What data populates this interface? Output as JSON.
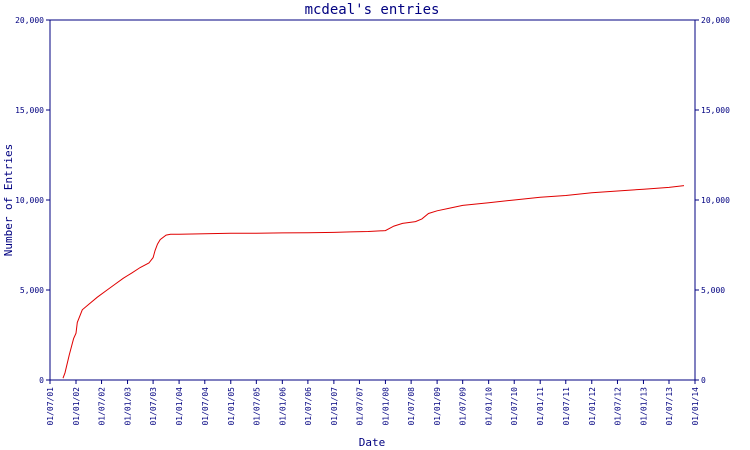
{
  "colors": {
    "axis": "#000080",
    "series": "#e00000",
    "background": "#ffffff"
  },
  "chart_data": {
    "type": "line",
    "title": "mcdeal's entries",
    "xlabel": "Date",
    "ylabel": "Number of Entries",
    "grid": false,
    "legend": "none",
    "xlim": [
      "2001-07-01",
      "2014-01-01"
    ],
    "ylim": [
      0,
      20000
    ],
    "y_ticks": [
      0,
      5000,
      10000,
      15000,
      20000
    ],
    "y_tick_labels": [
      "0",
      "5,000",
      "10,000",
      "15,000",
      "20,000"
    ],
    "x_ticks": [
      "2001-07-01",
      "2002-01-01",
      "2002-07-01",
      "2003-01-01",
      "2003-07-01",
      "2004-01-01",
      "2004-07-01",
      "2005-01-01",
      "2005-07-01",
      "2006-01-01",
      "2006-07-01",
      "2007-01-01",
      "2007-07-01",
      "2008-01-01",
      "2008-07-01",
      "2009-01-01",
      "2009-07-01",
      "2010-01-01",
      "2010-07-01",
      "2011-01-01",
      "2011-07-01",
      "2012-01-01",
      "2012-07-01",
      "2013-01-01",
      "2013-07-01",
      "2014-01-01"
    ],
    "x_tick_labels": [
      "01/07/01",
      "01/01/02",
      "01/07/02",
      "01/01/03",
      "01/07/03",
      "01/01/04",
      "01/07/04",
      "01/01/05",
      "01/07/05",
      "01/01/06",
      "01/07/06",
      "01/01/07",
      "01/07/07",
      "01/01/08",
      "01/07/08",
      "01/01/09",
      "01/07/09",
      "01/01/10",
      "01/07/10",
      "01/01/11",
      "01/07/11",
      "01/01/12",
      "01/07/12",
      "01/01/13",
      "01/07/13",
      "01/01/14"
    ],
    "series": [
      {
        "x": [
          "2001-10-01",
          "2001-10-15",
          "2001-11-15",
          "2001-12-15",
          "2002-01-01",
          "2002-01-10",
          "2002-02-15",
          "2002-04-01",
          "2002-06-01",
          "2002-08-01",
          "2002-10-01",
          "2002-12-01",
          "2003-02-01",
          "2003-04-01",
          "2003-06-01",
          "2003-07-01",
          "2003-07-15",
          "2003-08-01",
          "2003-08-20",
          "2003-10-01",
          "2003-11-01",
          "2004-01-01",
          "2004-07-01",
          "2005-01-01",
          "2005-07-01",
          "2006-01-01",
          "2006-07-01",
          "2007-01-01",
          "2007-05-01",
          "2007-09-01",
          "2008-01-01",
          "2008-03-01",
          "2008-05-01",
          "2008-08-01",
          "2008-09-15",
          "2008-11-01",
          "2009-01-01",
          "2009-04-01",
          "2009-07-01",
          "2010-01-01",
          "2010-07-01",
          "2011-01-01",
          "2011-07-01",
          "2012-01-01",
          "2012-07-01",
          "2013-01-01",
          "2013-07-01",
          "2013-10-15"
        ],
        "values": [
          100,
          400,
          1400,
          2300,
          2600,
          3200,
          3900,
          4200,
          4600,
          4950,
          5300,
          5650,
          5950,
          6250,
          6500,
          6800,
          7200,
          7550,
          7800,
          8050,
          8100,
          8100,
          8120,
          8150,
          8150,
          8170,
          8180,
          8200,
          8230,
          8250,
          8300,
          8550,
          8700,
          8800,
          8950,
          9250,
          9400,
          9550,
          9700,
          9850,
          10000,
          10150,
          10250,
          10400,
          10500,
          10600,
          10700,
          10800
        ]
      }
    ]
  }
}
